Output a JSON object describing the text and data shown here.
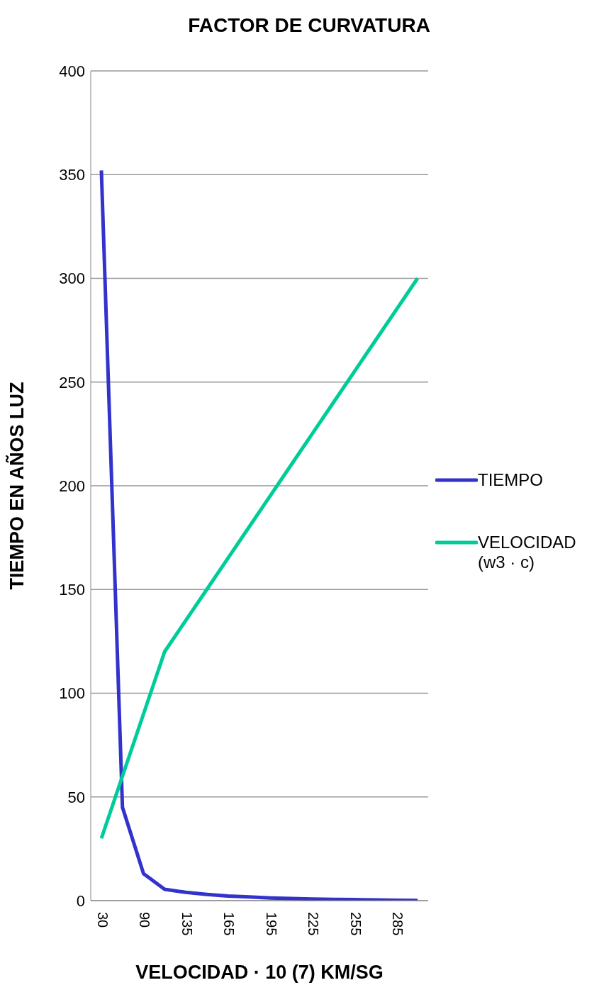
{
  "chart_data": {
    "type": "line",
    "title": "FACTOR DE CURVATURA",
    "xlabel": "VELOCIDAD · 10 (7) KM/SG",
    "ylabel": "TIEMPO EN AÑOS LUZ",
    "categories": [
      "30",
      null,
      "90",
      null,
      "135",
      null,
      "165",
      null,
      "195",
      null,
      "225",
      null,
      "255",
      null,
      "285",
      null
    ],
    "series": [
      {
        "name": "TIEMPO",
        "color": "#3333cc",
        "values": [
          352,
          45,
          13,
          5.5,
          4,
          3,
          2.2,
          1.8,
          1.3,
          1,
          0.8,
          0.6,
          0.5,
          0.3,
          0.2,
          0.1
        ]
      },
      {
        "name": "VELOCIDAD (w3 · c)",
        "color": "#00cc99",
        "values": [
          30,
          60,
          90,
          120,
          135,
          150,
          165,
          180,
          195,
          210,
          225,
          240,
          255,
          270,
          285,
          300
        ]
      }
    ],
    "ylim": [
      0,
      400
    ],
    "yticks": [
      0,
      50,
      100,
      150,
      200,
      250,
      300,
      350,
      400
    ],
    "grid": "y",
    "legend": "right",
    "marker": "none"
  }
}
